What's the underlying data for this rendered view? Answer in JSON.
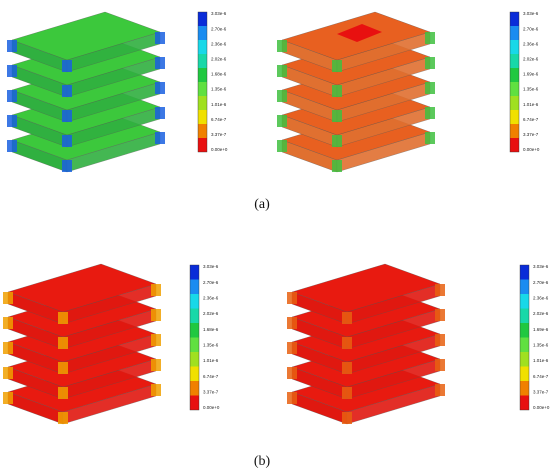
{
  "panels": [
    {
      "legend": [
        "3.03e-6",
        "2.70e-6",
        "2.36e-6",
        "2.02e-6",
        "1.68e-6",
        "1.35e-6",
        "1.01e-6",
        "6.74e-7",
        "3.37e-7",
        "0.00e+0"
      ]
    },
    {
      "legend": [
        "3.03e-6",
        "2.70e-6",
        "2.36e-6",
        "2.02e-6",
        "1.69e-6",
        "1.35e-6",
        "1.01e-6",
        "6.74e-7",
        "3.37e-7",
        "0.00e+0"
      ]
    },
    {
      "legend": [
        "3.03e-6",
        "2.70e-6",
        "2.36e-6",
        "2.02e-6",
        "1.68e-6",
        "1.35e-6",
        "1.01e-6",
        "6.74e-7",
        "3.37e-7",
        "0.00e+0"
      ]
    },
    {
      "legend": [
        "3.03e-6",
        "2.70e-6",
        "2.36e-6",
        "2.02e-6",
        "1.69e-6",
        "1.35e-6",
        "1.01e-6",
        "6.74e-7",
        "3.37e-7",
        "0.00e+0"
      ]
    }
  ],
  "captions": [
    "(a)",
    "(b)"
  ]
}
